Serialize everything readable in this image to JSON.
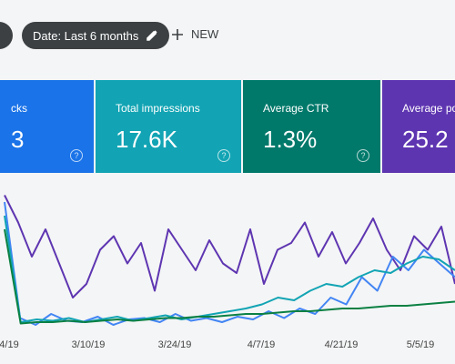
{
  "toolbar": {
    "date_chip": "Date: Last 6 months",
    "new_button": "NEW"
  },
  "cards": [
    {
      "label": "cks",
      "value": "3",
      "color": "#1a73e8"
    },
    {
      "label": "Total impressions",
      "value": "17.6K",
      "color": "#12a4b4"
    },
    {
      "label": "Average CTR",
      "value": "1.3%",
      "color": "#00796b"
    },
    {
      "label": "Average position",
      "value": "25.2",
      "color": "#5e35b1"
    }
  ],
  "chart": {
    "type": "line",
    "x_labels": [
      "4/19",
      "3/10/19",
      "3/24/19",
      "4/7/19",
      "4/21/19",
      "5/5/19"
    ],
    "ylim": [
      0,
      100
    ],
    "series": [
      {
        "color": "#5e35b1",
        "values": [
          95,
          75,
          50,
          70,
          45,
          20,
          30,
          55,
          65,
          45,
          60,
          25,
          70,
          55,
          40,
          62,
          45,
          38,
          70,
          30,
          55,
          60,
          75,
          50,
          68,
          45,
          60,
          78,
          55,
          40,
          65,
          55,
          72,
          30
        ]
      },
      {
        "color": "#4285f4",
        "values": [
          90,
          5,
          0,
          8,
          3,
          2,
          6,
          0,
          4,
          5,
          2,
          8,
          3,
          5,
          2,
          6,
          4,
          10,
          5,
          12,
          8,
          20,
          15,
          35,
          25,
          50,
          40,
          55,
          45,
          35
        ]
      },
      {
        "color": "#12a4b4",
        "values": [
          80,
          2,
          4,
          3,
          5,
          2,
          4,
          6,
          3,
          5,
          7,
          4,
          6,
          8,
          10,
          12,
          15,
          20,
          18,
          25,
          30,
          28,
          35,
          40,
          38,
          45,
          50,
          48,
          40
        ]
      },
      {
        "color": "#0b8043",
        "values": [
          70,
          1,
          2,
          2,
          3,
          2,
          3,
          4,
          3,
          4,
          5,
          5,
          6,
          6,
          7,
          8,
          8,
          9,
          10,
          10,
          11,
          12,
          12,
          13,
          14,
          14,
          15,
          16,
          17
        ]
      }
    ]
  }
}
